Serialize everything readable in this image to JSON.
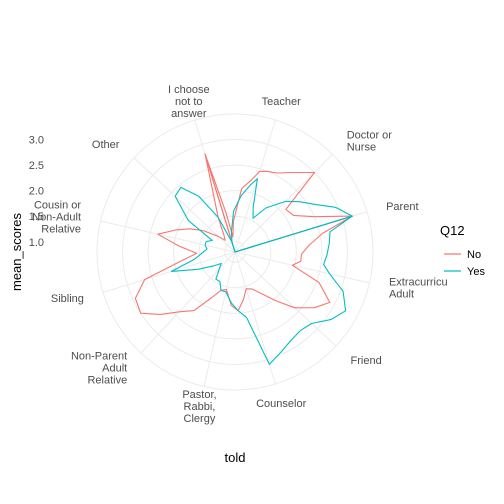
{
  "chart_data": {
    "type": "radar",
    "xlabel": "told",
    "ylabel": "mean_scores",
    "radial_ticks": [
      "1.0",
      "1.5",
      "2.0",
      "2.5",
      "3.0"
    ],
    "ylim": [
      0.8,
      3.5
    ],
    "grid": true,
    "categories": [
      "Teacher",
      "Doctor or\nNurse",
      "Parent",
      "Extracurricu\nAdult",
      "Friend",
      "Counselor",
      "Pastor,\nRabbi,\nClergy",
      "Non-Parent\nAdult\nRelative",
      "Sibling",
      "Cousin or\nNon-Adult\nRelative",
      "Other",
      "I choose\nnot to\nanswer"
    ],
    "category_angles_deg": [
      17,
      45,
      73,
      103,
      133,
      163,
      193,
      223,
      253,
      283,
      313,
      343
    ],
    "legend": {
      "title": "Q12",
      "position": "right"
    },
    "series": [
      {
        "name": "No",
        "color": "#F8766D",
        "segments": [
          [
            [
              73,
              3.2
            ],
            [
              78,
              2.55
            ],
            [
              85,
              2.25
            ],
            [
              92,
              2.1
            ],
            [
              98,
              2.1
            ],
            [
              103,
              1.95
            ],
            [
              110,
              2.55
            ],
            [
              118,
              2.9
            ],
            [
              125,
              2.7
            ],
            [
              133,
              2.4
            ],
            [
              140,
              2.05
            ],
            [
              148,
              1.75
            ],
            [
              155,
              1.6
            ],
            [
              163,
              1.55
            ],
            [
              170,
              1.75
            ],
            [
              177,
              1.95
            ],
            [
              184,
              1.85
            ],
            [
              193,
              1.55
            ],
            [
              200,
              1.6
            ],
            [
              207,
              1.8
            ],
            [
              215,
              2.2
            ],
            [
              223,
              2.4
            ],
            [
              230,
              2.7
            ],
            [
              237,
              3.0
            ],
            [
              245,
              2.95
            ],
            [
              253,
              2.65
            ],
            [
              260,
              1.9
            ],
            [
              268,
              1.55
            ],
            [
              276,
              1.9
            ],
            [
              283,
              2.35
            ],
            [
              290,
              2.05
            ],
            [
              297,
              1.8
            ],
            [
              304,
              1.55
            ],
            [
              313,
              1.25
            ],
            [
              320,
              1.1
            ],
            [
              327,
              1.2
            ],
            [
              334,
              1.55
            ],
            [
              343,
              2.8
            ]
          ],
          [
            [
              343,
              2.8
            ],
            [
              347,
              1.6
            ],
            [
              352,
              1.1
            ],
            [
              357,
              1.4
            ],
            [
              6,
              2.05
            ],
            [
              13,
              2.25
            ],
            [
              17,
              2.45
            ],
            [
              22,
              2.5
            ],
            [
              28,
              2.55
            ],
            [
              35,
              2.7
            ],
            [
              45,
              3.0
            ],
            [
              50,
              2.1
            ],
            [
              58,
              2.15
            ],
            [
              66,
              2.5
            ],
            [
              73,
              3.2
            ]
          ]
        ]
      },
      {
        "name": "Yes",
        "color": "#00BFC4",
        "segments": [
          [
            [
              73,
              3.2
            ],
            [
              78,
              2.7
            ],
            [
              85,
              2.65
            ],
            [
              92,
              2.6
            ],
            [
              98,
              2.55
            ],
            [
              103,
              2.7
            ],
            [
              110,
              3.05
            ],
            [
              118,
              3.25
            ],
            [
              125,
              3.1
            ],
            [
              133,
              2.85
            ],
            [
              140,
              2.8
            ],
            [
              148,
              2.85
            ],
            [
              155,
              2.95
            ],
            [
              163,
              3.1
            ],
            [
              170,
              2.1
            ],
            [
              177,
              1.95
            ],
            [
              184,
              1.8
            ],
            [
              193,
              1.6
            ],
            [
              200,
              1.6
            ],
            [
              207,
              1.45
            ],
            [
              215,
              1.45
            ],
            [
              223,
              1.25
            ],
            [
              230,
              1.15
            ],
            [
              237,
              1.3
            ],
            [
              245,
              1.6
            ],
            [
              253,
              2.1
            ],
            [
              260,
              1.6
            ],
            [
              268,
              1.45
            ],
            [
              276,
              1.35
            ],
            [
              283,
              1.4
            ],
            [
              290,
              1.4
            ],
            [
              297,
              1.3
            ],
            [
              304,
              1.9
            ],
            [
              313,
              2.4
            ],
            [
              320,
              2.45
            ],
            [
              327,
              2.1
            ],
            [
              334,
              1.55
            ],
            [
              343,
              1.0
            ]
          ],
          [
            [
              343,
              1.0
            ],
            [
              350,
              1.2
            ],
            [
              358,
              1.6
            ],
            [
              6,
              1.9
            ],
            [
              13,
              2.15
            ],
            [
              17,
              2.3
            ],
            [
              22,
              1.75
            ],
            [
              28,
              1.55
            ],
            [
              35,
              1.85
            ],
            [
              45,
              2.2
            ],
            [
              52,
              2.4
            ],
            [
              60,
              2.65
            ],
            [
              66,
              2.95
            ],
            [
              73,
              3.2
            ]
          ]
        ]
      }
    ]
  }
}
